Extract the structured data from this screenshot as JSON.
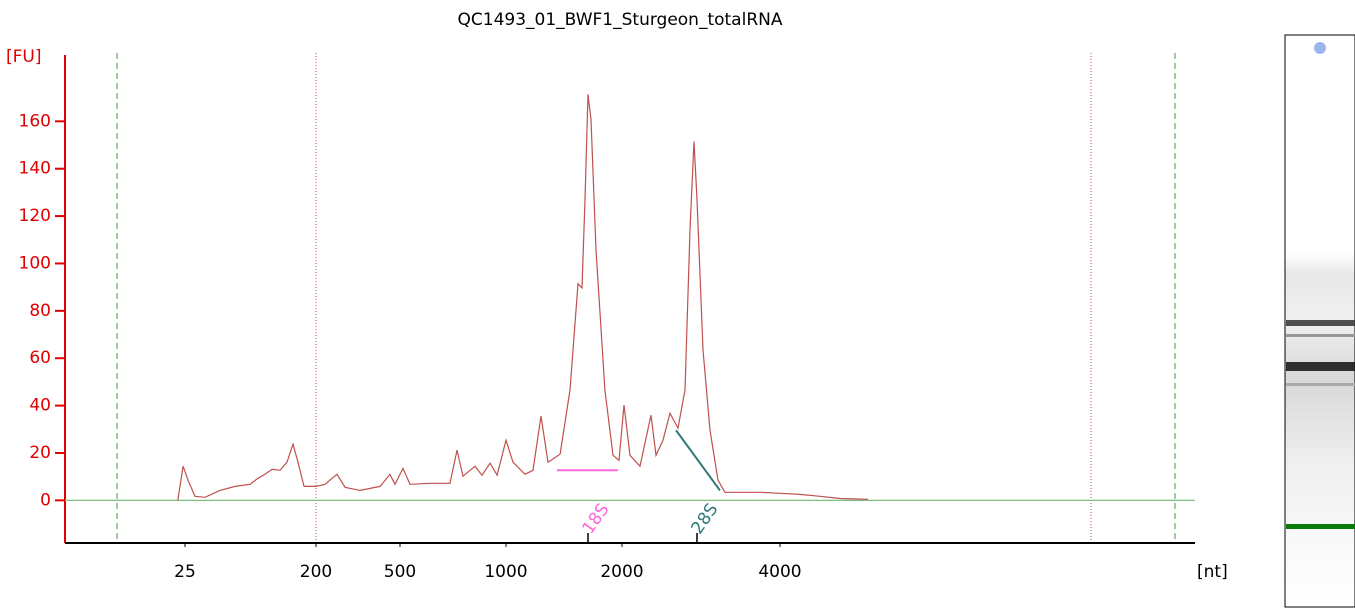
{
  "chart_data": {
    "type": "line",
    "title": "QC1493_01_BWF1_Sturgeon_totalRNA",
    "ylabel": "[FU]",
    "xlabel": "[nt]",
    "x": [
      23.5,
      24.6,
      29,
      38.4,
      51.7,
      71.8,
      91.8,
      111.8,
      122.5,
      131.9,
      141.2,
      151.9,
      161.3,
      169.3,
      176,
      184,
      200,
      232,
      275,
      304,
      357,
      429,
      464,
      482,
      514,
      547,
      642,
      736,
      769,
      797,
      854,
      887,
      925,
      958,
      1000,
      1060,
      1164,
      1233,
      1302,
      1362,
      1466,
      1552,
      1621,
      1655,
      1681,
      1707,
      1733,
      1776,
      1853,
      1922,
      1974,
      2025,
      2101,
      2228,
      2367,
      2430,
      2519,
      2608,
      2709,
      2798,
      2861,
      2911,
      2949,
      3025,
      3114,
      3215,
      3304,
      3747,
      4000,
      4289,
      4578,
      4867,
      5272
    ],
    "series": [
      {
        "color": "#c0504d",
        "values": [
          0,
          14.4,
          8.5,
          1.7,
          1.3,
          4.2,
          5.9,
          6.8,
          9.3,
          11,
          13.1,
          12.7,
          16.1,
          23.7,
          16.1,
          5.9,
          5.9,
          6.8,
          11,
          5.5,
          4.2,
          5.9,
          11,
          6.8,
          13.5,
          6.8,
          7.2,
          7.2,
          21.2,
          10.2,
          14.4,
          10.6,
          15.7,
          10.6,
          25.4,
          16.1,
          11,
          12.7,
          35.6,
          16.1,
          19.5,
          46.6,
          91.4,
          89.7,
          127,
          171.4,
          160.8,
          105.8,
          46.6,
          19,
          16.9,
          40.2,
          19,
          14.4,
          36,
          19,
          25.4,
          36.8,
          30.5,
          46.6,
          114.3,
          151.5,
          127,
          63.5,
          29.6,
          8.5,
          3.4,
          3.4,
          3,
          2.5,
          1.7,
          0.8,
          0.4
        ]
      }
    ],
    "peaks": [
      {
        "label": "18S",
        "x": 1707,
        "color": "#ff66dd",
        "baseline_x": [
          1440,
          1965
        ],
        "baseline_y": [
          12.7,
          12.7
        ]
      },
      {
        "label": "28S",
        "x": 2949,
        "color": "#2e7b78",
        "baseline_x": [
          2684,
          3240
        ],
        "baseline_y": [
          29.6,
          4.2
        ]
      }
    ],
    "xlim": [
      0,
      10000
    ],
    "xticks": [
      25,
      200,
      500,
      1000,
      2000,
      4000
    ],
    "ylim": [
      -18,
      188
    ],
    "yticks": [
      0,
      20,
      40,
      60,
      80,
      100,
      120,
      140,
      160
    ],
    "axis_color": "#e00000"
  }
}
